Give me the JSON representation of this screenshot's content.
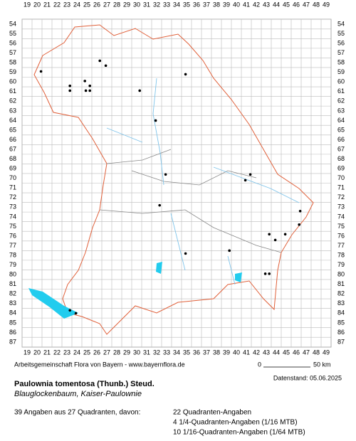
{
  "map": {
    "col_labels": [
      19,
      20,
      21,
      22,
      23,
      24,
      25,
      26,
      27,
      28,
      29,
      30,
      31,
      32,
      33,
      34,
      35,
      36,
      37,
      38,
      39,
      40,
      41,
      42,
      43,
      44,
      45,
      46,
      47,
      48,
      49
    ],
    "row_labels": [
      54,
      55,
      56,
      57,
      58,
      59,
      60,
      61,
      62,
      63,
      64,
      65,
      66,
      67,
      68,
      69,
      70,
      71,
      72,
      73,
      74,
      75,
      76,
      77,
      78,
      79,
      80,
      81,
      82,
      83,
      84,
      85,
      86,
      87
    ],
    "points": [
      [
        20.4,
        58.9
      ],
      [
        23.3,
        60.4
      ],
      [
        23.3,
        60.9
      ],
      [
        24.8,
        59.9
      ],
      [
        25.3,
        60.4
      ],
      [
        24.9,
        60.9
      ],
      [
        25.3,
        60.9
      ],
      [
        26.3,
        57.8
      ],
      [
        26.9,
        58.3
      ],
      [
        34.9,
        59.2
      ],
      [
        30.3,
        60.9
      ],
      [
        31.9,
        64.0
      ],
      [
        32.9,
        69.6
      ],
      [
        41.4,
        69.6
      ],
      [
        40.9,
        70.2
      ],
      [
        32.3,
        72.8
      ],
      [
        46.4,
        73.4
      ],
      [
        43.3,
        75.8
      ],
      [
        44.9,
        75.8
      ],
      [
        43.9,
        76.4
      ],
      [
        46.3,
        74.8
      ],
      [
        34.9,
        77.8
      ],
      [
        39.3,
        77.5
      ],
      [
        42.9,
        79.9
      ],
      [
        43.3,
        79.9
      ],
      [
        23.3,
        83.7
      ],
      [
        23.9,
        84.0
      ]
    ],
    "source": "Arbeitsgemeinschaft Flora von Bayern - www.bayernflora.de",
    "scale_start": "0",
    "scale_end": "50 km",
    "date": "Datenstand: 05.06.2025",
    "species": "Paulownia tomentosa (Thunb.) Steud.",
    "common_name": "Blauglockenbaum, Kaiser-Paulownie",
    "summary": "39 Angaben aus 27 Quadranten, davon:",
    "details": [
      "22 Quadranten-Angaben",
      "4 1/4-Quadranten-Angaben (1/16 MTB)",
      "10 1/16-Quadranten-Angaben (1/64 MTB)"
    ]
  }
}
